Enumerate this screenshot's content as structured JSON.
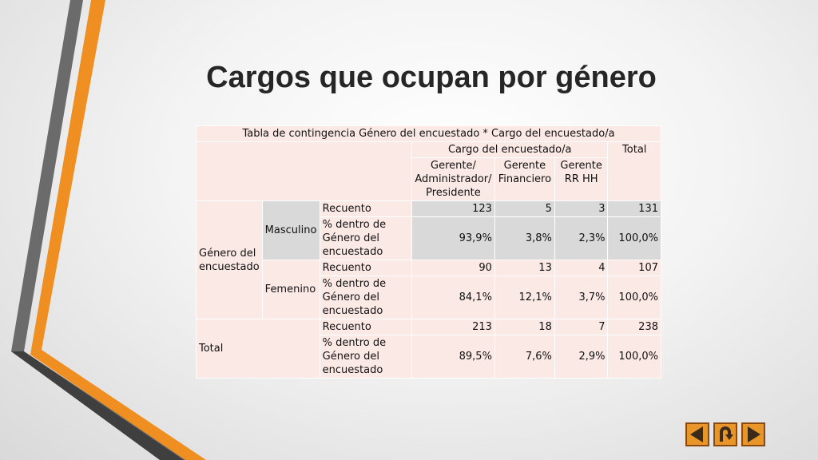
{
  "slide": {
    "title": "Cargos que ocupan por género"
  },
  "table": {
    "caption": "Tabla de contingencia Género del encuestado * Cargo del encuestado/a",
    "col_group": "Cargo del encuestado/a",
    "total_header": "Total",
    "columns": [
      "Gerente/ Administrador/ Presidente",
      "Gerente Financiero",
      "Gerente RR HH"
    ],
    "row_group": "Género del encuestado",
    "stat_labels": {
      "count": "Recuento",
      "pct": "% dentro de Género del encuestado"
    },
    "rows": [
      {
        "label": "Masculino",
        "count": [
          "123",
          "5",
          "3",
          "131"
        ],
        "pct": [
          "93,9%",
          "3,8%",
          "2,3%",
          "100,0%"
        ]
      },
      {
        "label": "Femenino",
        "count": [
          "90",
          "13",
          "4",
          "107"
        ],
        "pct": [
          "84,1%",
          "12,1%",
          "3,7%",
          "100,0%"
        ]
      }
    ],
    "total_row": {
      "label": "Total",
      "count": [
        "213",
        "18",
        "7",
        "238"
      ],
      "pct": [
        "89,5%",
        "7,6%",
        "2,9%",
        "100,0%"
      ]
    }
  },
  "nav": {
    "icons": [
      "prev-arrow-icon",
      "return-icon",
      "next-arrow-icon"
    ],
    "color": "#e8952a"
  },
  "colors": {
    "accent_orange": "#ef8f22",
    "accent_gray": "#666666",
    "table_fill": "#fbe9e6"
  }
}
